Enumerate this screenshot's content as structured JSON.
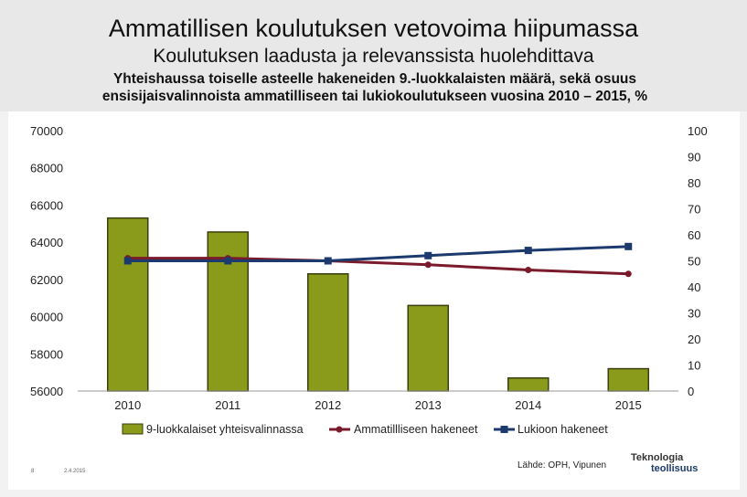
{
  "slide": {
    "title": "Ammatillisen koulutuksen vetovoima hiipumassa",
    "subtitle": "Koulutuksen laadusta ja relevanssista huolehdittava",
    "description_line1": "Yhteishaussa toiselle asteelle hakeneiden 9.-luokkalaisten määrä, sekä osuus",
    "description_line2": "ensisijaisvalinnoista ammatilliseen tai lukiokoulutukseen vuosina 2010 – 2015, %",
    "page_number": "8",
    "date": "2.4.2015",
    "source": "Lähde: OPH, Vipunen",
    "logo_line1": "Teknologia",
    "logo_line2": "teollisuus"
  },
  "colors": {
    "bar": "#8a9a1b",
    "bar_edge": "#3b3f10",
    "ammatillinen": "#7b1a2a",
    "lukio": "#1c3a6e"
  },
  "chart_data": {
    "type": "bar+line",
    "categories": [
      "2010",
      "2011",
      "2012",
      "2013",
      "2014",
      "2015"
    ],
    "bar_series": {
      "name": "9-luokkalaiset yhteisvalinnassa",
      "values": [
        65300,
        64550,
        62300,
        60600,
        56700,
        57200
      ],
      "axis": "left"
    },
    "line_series": [
      {
        "name": "Ammatillliseen hakeneet",
        "values": [
          51,
          51,
          50,
          48.5,
          46.5,
          45
        ],
        "axis": "right",
        "color_key": "ammatillinen"
      },
      {
        "name": "Lukioon hakeneet",
        "values": [
          50,
          50,
          50,
          52,
          54,
          55.5
        ],
        "axis": "right",
        "color_key": "lukio"
      }
    ],
    "left_axis": {
      "min": 56000,
      "max": 70000,
      "ticks": [
        "70000",
        "68000",
        "66000",
        "64000",
        "62000",
        "60000",
        "58000",
        "56000"
      ]
    },
    "right_axis": {
      "min": 0,
      "max": 100,
      "ticks": [
        "100",
        "90",
        "80",
        "70",
        "60",
        "50",
        "40",
        "30",
        "20",
        "10",
        "0"
      ]
    },
    "legend_position": "bottom"
  }
}
